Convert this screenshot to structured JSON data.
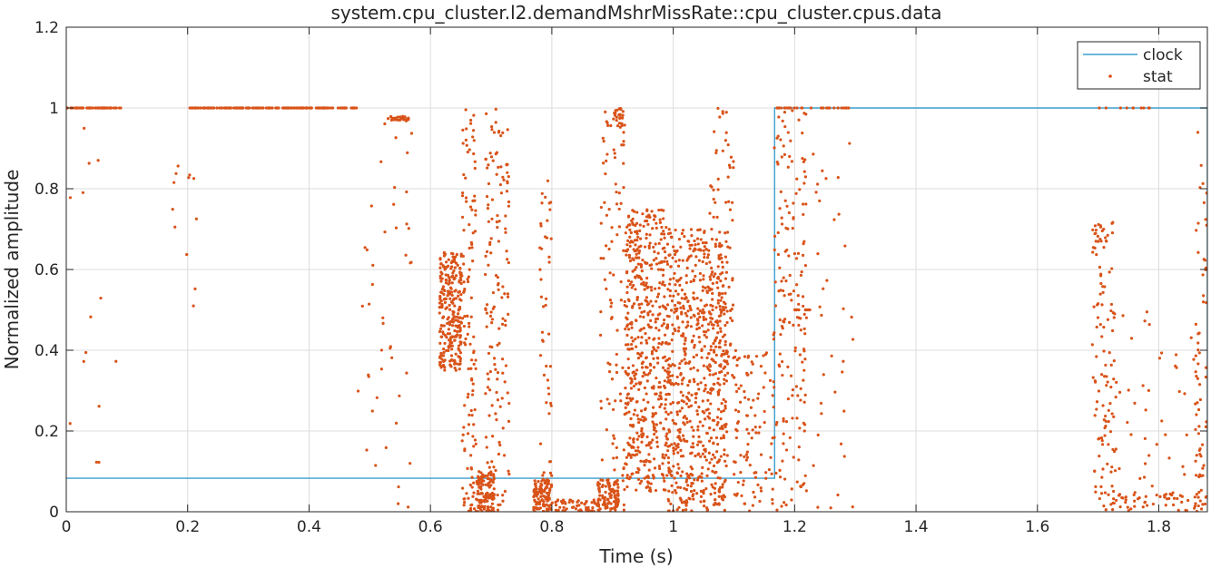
{
  "chart_data": {
    "type": "scatter",
    "title": "system.cpu_cluster.l2.demandMshrMissRate::cpu_cluster.cpus.data",
    "xlabel": "Time (s)",
    "ylabel": "Normalized amplitude",
    "xlim": [
      0,
      1.88
    ],
    "ylim": [
      0,
      1.2
    ],
    "xticks": [
      0,
      0.2,
      0.4,
      0.6,
      0.8,
      1,
      1.2,
      1.4,
      1.6,
      1.8
    ],
    "xtick_labels": [
      "0",
      "0.2",
      "0.4",
      "0.6",
      "0.8",
      "1",
      "1.2",
      "1.4",
      "1.6",
      "1.8"
    ],
    "yticks": [
      0,
      0.2,
      0.4,
      0.6,
      0.8,
      1,
      1.2
    ],
    "ytick_labels": [
      "0",
      "0.2",
      "0.4",
      "0.6",
      "0.8",
      "1",
      "1.2"
    ],
    "grid": true,
    "legend_position": "top-right",
    "series": [
      {
        "name": "clock",
        "style": "line",
        "color": "#3a9fcd",
        "points": [
          [
            0,
            0.083
          ],
          [
            1.167,
            0.083
          ],
          [
            1.167,
            1.0
          ],
          [
            1.88,
            1.0
          ],
          [
            1.88,
            0.083
          ]
        ]
      },
      {
        "name": "stat",
        "style": "points",
        "color": "#d95319",
        "clusters": [
          {
            "x": [
              0.0,
              0.09
            ],
            "y": [
              1.0,
              1.0
            ],
            "n": 60
          },
          {
            "x": [
              0.2,
              0.48
            ],
            "y": [
              1.0,
              1.0
            ],
            "n": 160
          },
          {
            "x": [
              0.53,
              0.565
            ],
            "y": [
              0.97,
              0.98
            ],
            "n": 30
          },
          {
            "x": [
              0.0,
              0.09
            ],
            "y": [
              0.1,
              0.97
            ],
            "n": 14
          },
          {
            "x": [
              0.17,
              0.22
            ],
            "y": [
              0.45,
              0.9
            ],
            "n": 12
          },
          {
            "x": [
              0.48,
              0.57
            ],
            "y": [
              0.0,
              0.97
            ],
            "n": 45
          },
          {
            "x": [
              0.615,
              0.652
            ],
            "y": [
              0.35,
              0.65
            ],
            "n": 260
          },
          {
            "x": [
              0.652,
              0.675
            ],
            "y": [
              0.0,
              1.0
            ],
            "n": 120
          },
          {
            "x": [
              0.675,
              0.705
            ],
            "y": [
              0.0,
              0.1
            ],
            "n": 120
          },
          {
            "x": [
              0.69,
              0.73
            ],
            "y": [
              0.0,
              1.0
            ],
            "n": 150
          },
          {
            "x": [
              0.77,
              0.8
            ],
            "y": [
              0.0,
              0.08
            ],
            "n": 110
          },
          {
            "x": [
              0.78,
              0.8
            ],
            "y": [
              0.0,
              0.82
            ],
            "n": 50
          },
          {
            "x": [
              0.8,
              0.88
            ],
            "y": [
              0.0,
              0.03
            ],
            "n": 60
          },
          {
            "x": [
              0.875,
              0.91
            ],
            "y": [
              0.0,
              0.08
            ],
            "n": 100
          },
          {
            "x": [
              0.88,
              0.92
            ],
            "y": [
              0.0,
              1.0
            ],
            "n": 90
          },
          {
            "x": [
              0.9,
              0.92
            ],
            "y": [
              0.95,
              1.0
            ],
            "n": 25
          },
          {
            "x": [
              0.92,
              0.99
            ],
            "y": [
              0.05,
              0.75
            ],
            "n": 520
          },
          {
            "x": [
              0.99,
              1.09
            ],
            "y": [
              0.0,
              0.7
            ],
            "n": 700
          },
          {
            "x": [
              1.06,
              1.1
            ],
            "y": [
              0.3,
              1.0
            ],
            "n": 80
          },
          {
            "x": [
              1.1,
              1.165
            ],
            "y": [
              0.0,
              0.4
            ],
            "n": 100
          },
          {
            "x": [
              1.165,
              1.22
            ],
            "y": [
              0.0,
              1.0
            ],
            "n": 170
          },
          {
            "x": [
              1.2,
              1.23
            ],
            "y": [
              0.5,
              0.5
            ],
            "n": 15
          },
          {
            "x": [
              1.17,
              1.29
            ],
            "y": [
              1.0,
              1.0
            ],
            "n": 30
          },
          {
            "x": [
              1.23,
              1.3
            ],
            "y": [
              0.0,
              0.95
            ],
            "n": 35
          },
          {
            "x": [
              1.69,
              1.73
            ],
            "y": [
              0.0,
              0.72
            ],
            "n": 120
          },
          {
            "x": [
              1.72,
              1.88
            ],
            "y": [
              0.0,
              0.05
            ],
            "n": 60
          },
          {
            "x": [
              1.73,
              1.88
            ],
            "y": [
              0.05,
              0.5
            ],
            "n": 40
          },
          {
            "x": [
              1.86,
              1.88
            ],
            "y": [
              0.0,
              0.95
            ],
            "n": 60
          },
          {
            "x": [
              1.7,
              1.79
            ],
            "y": [
              1.0,
              1.0
            ],
            "n": 10
          }
        ]
      }
    ]
  }
}
